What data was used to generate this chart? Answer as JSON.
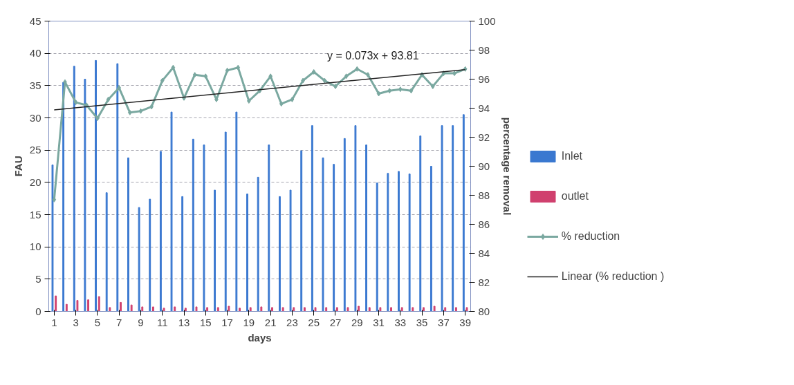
{
  "chart_data": {
    "type": "bar",
    "xlabel": "days",
    "ylabel": "FAU",
    "y2label": "percentage removal",
    "x": [
      1,
      2,
      3,
      4,
      5,
      6,
      7,
      8,
      9,
      10,
      11,
      12,
      13,
      14,
      15,
      16,
      17,
      18,
      19,
      20,
      21,
      22,
      23,
      24,
      25,
      26,
      27,
      28,
      29,
      30,
      31,
      32,
      33,
      34,
      35,
      36,
      37,
      38,
      39
    ],
    "xlim": [
      0.5,
      39.5
    ],
    "xticks": [
      1,
      3,
      5,
      7,
      9,
      11,
      13,
      15,
      17,
      19,
      21,
      23,
      25,
      27,
      29,
      31,
      33,
      35,
      37,
      39
    ],
    "ylim": [
      0,
      45
    ],
    "yticks": [
      0,
      5,
      10,
      15,
      20,
      25,
      30,
      35,
      40,
      45
    ],
    "y2lim": [
      80,
      100
    ],
    "y2ticks": [
      80,
      82,
      84,
      86,
      88,
      90,
      92,
      94,
      96,
      98,
      100
    ],
    "grid": "y",
    "legend": "right",
    "series": [
      {
        "name": "Inlet",
        "color": "#3a78d0",
        "values": [
          22.7,
          35.5,
          38,
          36,
          38.9,
          18.4,
          38.4,
          23.8,
          16.1,
          17.4,
          24.8,
          30.9,
          17.8,
          26.7,
          25.8,
          18.8,
          27.8,
          30.9,
          18.2,
          20.8,
          25.8,
          17.8,
          18.8,
          24.9,
          28.8,
          23.8,
          22.8,
          26.8,
          28.8,
          25.8,
          19.9,
          21.4,
          21.7,
          21.3,
          27.2,
          22.5,
          28.8,
          28.8,
          30.5
        ]
      },
      {
        "name": "outlet",
        "color": "#d0406e",
        "values": [
          2.4,
          1.1,
          1.7,
          1.8,
          2.3,
          0.6,
          1.4,
          1.0,
          0.7,
          0.7,
          0.5,
          0.7,
          0.5,
          0.7,
          0.6,
          0.6,
          0.8,
          0.5,
          0.6,
          0.7,
          0.6,
          0.6,
          0.6,
          0.6,
          0.6,
          0.6,
          0.6,
          0.6,
          0.8,
          0.6,
          0.6,
          0.6,
          0.6,
          0.6,
          0.6,
          0.8,
          0.6,
          0.6,
          0.6
        ]
      },
      {
        "name": "% reduction",
        "type": "line",
        "axis": "y2",
        "marker": "diamond",
        "color": "#7aa8a0",
        "values": [
          87.7,
          95.8,
          94.4,
          94.2,
          93.3,
          94.6,
          95.4,
          93.7,
          93.8,
          94.1,
          95.9,
          96.8,
          94.7,
          96.3,
          96.2,
          94.6,
          96.6,
          96.8,
          94.5,
          95.2,
          96.2,
          94.3,
          94.6,
          95.9,
          96.5,
          95.9,
          95.5,
          96.2,
          96.7,
          96.3,
          95.0,
          95.2,
          95.3,
          95.2,
          96.3,
          95.5,
          96.4,
          96.4,
          96.7
        ]
      },
      {
        "name": "Linear (% reduction )",
        "type": "line",
        "axis": "y2",
        "color": "#222222",
        "x": [
          1,
          39
        ],
        "values": [
          93.88,
          96.66
        ]
      }
    ],
    "annotations": [
      "y = 0.073x + 93.81"
    ]
  }
}
